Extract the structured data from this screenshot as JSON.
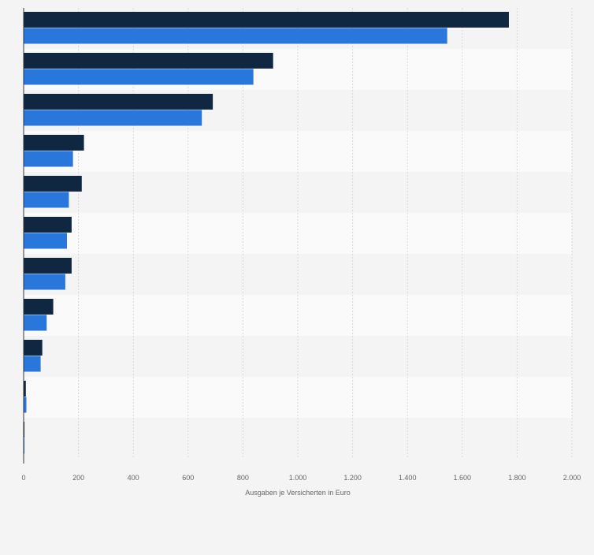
{
  "chart_data": {
    "type": "bar",
    "orientation": "horizontal",
    "categories": [
      "",
      "",
      "",
      "",
      "",
      "",
      "",
      "",
      "",
      "",
      ""
    ],
    "series": [
      {
        "color": "#0f2740",
        "values": [
          1770,
          910,
          690,
          220,
          212,
          175,
          175,
          108,
          68,
          8,
          3
        ]
      },
      {
        "color": "#2a77dc",
        "values": [
          1545,
          838,
          650,
          180,
          165,
          158,
          152,
          84,
          62,
          10,
          3
        ]
      }
    ],
    "xlabel": "Ausgaben je Versicherten in Euro",
    "xlim": [
      0,
      2000
    ],
    "xticks": [
      0,
      200,
      400,
      600,
      800,
      1000,
      1200,
      1400,
      1600,
      1800,
      2000
    ],
    "xtick_labels": [
      "0",
      "200",
      "400",
      "600",
      "800",
      "1.000",
      "1.200",
      "1.400",
      "1.600",
      "1.800",
      "2.000"
    ],
    "grid": true,
    "legend": "none"
  }
}
